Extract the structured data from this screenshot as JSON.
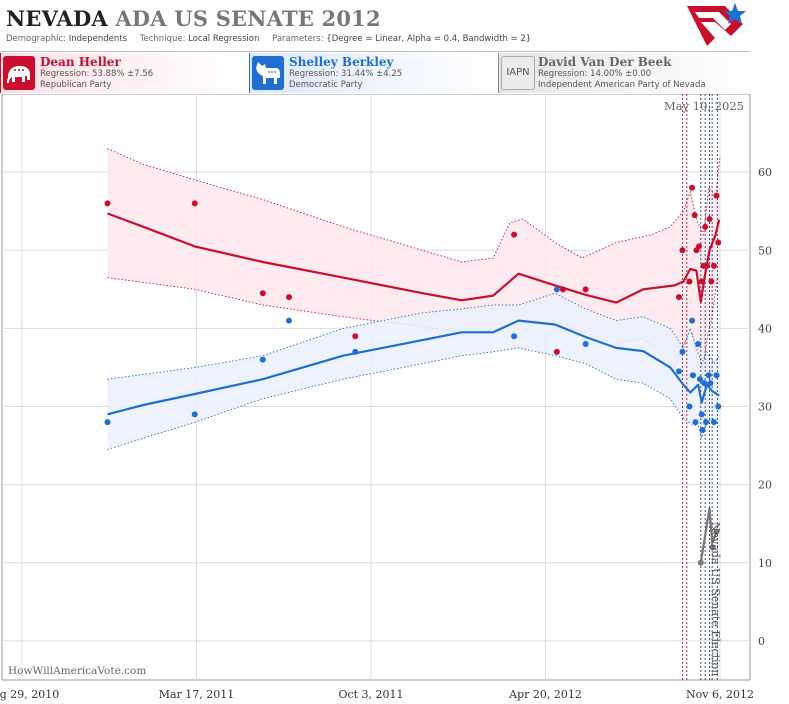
{
  "header": {
    "title_state": "NEVADA",
    "title_race": "ADA US SENATE 2012",
    "demographic_label": "Demographic:",
    "demographic_value": "Independents",
    "technique_label": "Technique:",
    "technique_value": "Local Regression",
    "parameters_label": "Parameters:",
    "parameters_value": "{Degree = Linear, Alpha = 0.4, Bandwidth = 2}"
  },
  "candidates": [
    {
      "name": "Dean Heller",
      "regression": "Regression: 53.88% ±7.56",
      "party": "Republican Party",
      "color": "#c8102e",
      "icon": "elephant-icon"
    },
    {
      "name": "Shelley Berkley",
      "regression": "Regression: 31.44% ±4.25",
      "party": "Democratic Party",
      "color": "#1f6fd1",
      "icon": "donkey-icon"
    },
    {
      "name": "David Van Der Beek",
      "regression": "Regression: 14.00% ±0.00",
      "party": "Independent American Party  of Nevada",
      "color": "#888888",
      "icon": "IAPN"
    }
  ],
  "chart_data": {
    "type": "scatter",
    "date_label": "May 10, 2025",
    "election_label": "Nevada US Senate Election",
    "watermark": "HowWillAmericaVote.com",
    "x_ticks": [
      "Aug 29, 2010",
      "Mar 17, 2011",
      "Oct 3, 2011",
      "Apr 20, 2012",
      "Nov 6, 2012"
    ],
    "xlim": [
      "2010-08-29",
      "2012-11-06"
    ],
    "ylim": [
      -5,
      70
    ],
    "y_ticks": [
      0,
      10,
      20,
      30,
      40,
      50,
      60
    ],
    "grid": true,
    "vlines_red": [
      "2012-09-24",
      "2012-09-29"
    ],
    "vlines_dark": [
      "2012-10-15",
      "2012-10-20",
      "2012-10-25",
      "2012-10-28",
      "2012-11-03"
    ],
    "series": [
      {
        "name": "Dean Heller",
        "color": "#c8102e",
        "band_fill": "#fde7ec",
        "points": [
          [
            "2010-12-05",
            56
          ],
          [
            "2011-03-15",
            56
          ],
          [
            "2011-06-01",
            44.5
          ],
          [
            "2011-07-01",
            44
          ],
          [
            "2011-09-15",
            39
          ],
          [
            "2012-03-15",
            52
          ],
          [
            "2012-05-03",
            37
          ],
          [
            "2012-05-10",
            45
          ],
          [
            "2012-06-05",
            45
          ],
          [
            "2012-09-20",
            44
          ],
          [
            "2012-09-24",
            50
          ],
          [
            "2012-10-02",
            46
          ],
          [
            "2012-10-05",
            58
          ],
          [
            "2012-10-08",
            54.5
          ],
          [
            "2012-10-10",
            50
          ],
          [
            "2012-10-13",
            50.5
          ],
          [
            "2012-10-16",
            46
          ],
          [
            "2012-10-18",
            48
          ],
          [
            "2012-10-20",
            53
          ],
          [
            "2012-10-22",
            48
          ],
          [
            "2012-10-25",
            54
          ],
          [
            "2012-10-27",
            46
          ],
          [
            "2012-10-30",
            48
          ],
          [
            "2012-11-02",
            57
          ],
          [
            "2012-11-04",
            51
          ]
        ],
        "trend": [
          [
            "2010-12-05",
            54.7
          ],
          [
            "2011-01-15",
            53
          ],
          [
            "2011-03-15",
            50.5
          ],
          [
            "2011-06-01",
            48.5
          ],
          [
            "2011-09-01",
            46.5
          ],
          [
            "2011-12-01",
            44.5
          ],
          [
            "2012-01-15",
            43.6
          ],
          [
            "2012-02-20",
            44.2
          ],
          [
            "2012-03-20",
            47
          ],
          [
            "2012-05-01",
            45.5
          ],
          [
            "2012-06-05",
            44.3
          ],
          [
            "2012-07-10",
            43.3
          ],
          [
            "2012-08-10",
            45
          ],
          [
            "2012-09-15",
            45.5
          ],
          [
            "2012-09-25",
            46
          ],
          [
            "2012-10-03",
            47.6
          ],
          [
            "2012-10-10",
            47.4
          ],
          [
            "2012-10-15",
            43.4
          ],
          [
            "2012-10-20",
            47
          ],
          [
            "2012-10-25",
            50
          ],
          [
            "2012-11-01",
            52
          ],
          [
            "2012-11-05",
            53.9
          ]
        ],
        "upper": [
          [
            "2010-12-05",
            63
          ],
          [
            "2011-01-15",
            61
          ],
          [
            "2011-03-15",
            59
          ],
          [
            "2011-06-01",
            56.5
          ],
          [
            "2011-09-01",
            53
          ],
          [
            "2011-12-01",
            50
          ],
          [
            "2012-01-15",
            48.5
          ],
          [
            "2012-02-20",
            49
          ],
          [
            "2012-03-10",
            53.5
          ],
          [
            "2012-03-25",
            54
          ],
          [
            "2012-05-01",
            51
          ],
          [
            "2012-06-01",
            49
          ],
          [
            "2012-07-10",
            51
          ],
          [
            "2012-08-20",
            52
          ],
          [
            "2012-09-10",
            53
          ],
          [
            "2012-09-25",
            55
          ],
          [
            "2012-10-03",
            57.5
          ],
          [
            "2012-10-10",
            54
          ],
          [
            "2012-10-18",
            52
          ],
          [
            "2012-10-24",
            58
          ],
          [
            "2012-11-01",
            57
          ],
          [
            "2012-11-06",
            62
          ]
        ],
        "lower": [
          [
            "2010-12-05",
            46.5
          ],
          [
            "2011-03-15",
            45
          ],
          [
            "2011-06-01",
            43
          ],
          [
            "2011-09-01",
            41.5
          ],
          [
            "2011-12-01",
            40.2
          ],
          [
            "2012-01-15",
            39.5
          ],
          [
            "2012-02-20",
            39.8
          ],
          [
            "2012-03-20",
            41
          ],
          [
            "2012-05-01",
            40.3
          ],
          [
            "2012-06-05",
            39.5
          ],
          [
            "2012-07-10",
            38
          ],
          [
            "2012-08-10",
            38.8
          ],
          [
            "2012-09-15",
            35
          ],
          [
            "2012-09-25",
            38
          ],
          [
            "2012-10-05",
            39.5
          ],
          [
            "2012-10-15",
            33
          ],
          [
            "2012-10-22",
            38.5
          ],
          [
            "2012-10-28",
            41.5
          ],
          [
            "2012-11-03",
            46.5
          ],
          [
            "2012-11-05",
            46
          ]
        ]
      },
      {
        "name": "Shelley Berkley",
        "color": "#1f6fd1",
        "band_fill": "#eaf0fb",
        "points": [
          [
            "2010-12-05",
            28
          ],
          [
            "2011-03-15",
            29
          ],
          [
            "2011-06-01",
            36
          ],
          [
            "2011-07-01",
            41
          ],
          [
            "2011-09-15",
            37
          ],
          [
            "2012-03-15",
            39
          ],
          [
            "2012-05-03",
            45
          ],
          [
            "2012-06-05",
            38
          ],
          [
            "2012-09-20",
            34.5
          ],
          [
            "2012-09-24",
            37
          ],
          [
            "2012-10-02",
            30
          ],
          [
            "2012-10-05",
            41
          ],
          [
            "2012-10-06",
            34
          ],
          [
            "2012-10-09",
            28
          ],
          [
            "2012-10-12",
            38
          ],
          [
            "2012-10-14",
            33.5
          ],
          [
            "2012-10-16",
            29
          ],
          [
            "2012-10-17",
            27
          ],
          [
            "2012-10-19",
            33
          ],
          [
            "2012-10-21",
            28
          ],
          [
            "2012-10-24",
            34
          ],
          [
            "2012-10-26",
            33
          ],
          [
            "2012-10-30",
            28
          ],
          [
            "2012-11-02",
            34
          ],
          [
            "2012-11-04",
            30
          ]
        ],
        "trend": [
          [
            "2010-12-05",
            29
          ],
          [
            "2011-01-15",
            30.2
          ],
          [
            "2011-03-15",
            31.6
          ],
          [
            "2011-06-01",
            33.5
          ],
          [
            "2011-09-01",
            36.5
          ],
          [
            "2011-12-01",
            38.5
          ],
          [
            "2012-01-15",
            39.5
          ],
          [
            "2012-02-20",
            39.5
          ],
          [
            "2012-03-20",
            41
          ],
          [
            "2012-05-01",
            40.5
          ],
          [
            "2012-06-05",
            38.9
          ],
          [
            "2012-07-10",
            37.5
          ],
          [
            "2012-08-10",
            37.1
          ],
          [
            "2012-09-10",
            35
          ],
          [
            "2012-09-25",
            32.8
          ],
          [
            "2012-10-03",
            31.8
          ],
          [
            "2012-10-12",
            32.8
          ],
          [
            "2012-10-16",
            30.5
          ],
          [
            "2012-10-22",
            32.8
          ],
          [
            "2012-10-28",
            32
          ],
          [
            "2012-11-05",
            31.4
          ]
        ],
        "upper": [
          [
            "2010-12-05",
            33.5
          ],
          [
            "2011-03-15",
            35
          ],
          [
            "2011-06-01",
            36.5
          ],
          [
            "2011-09-01",
            40
          ],
          [
            "2011-12-01",
            42
          ],
          [
            "2012-01-15",
            42.5
          ],
          [
            "2012-02-20",
            43
          ],
          [
            "2012-03-20",
            43
          ],
          [
            "2012-05-01",
            44.5
          ],
          [
            "2012-06-05",
            42.5
          ],
          [
            "2012-07-10",
            41
          ],
          [
            "2012-08-10",
            41.5
          ],
          [
            "2012-09-10",
            40
          ],
          [
            "2012-09-25",
            37.5
          ],
          [
            "2012-10-03",
            40
          ],
          [
            "2012-10-10",
            37.5
          ],
          [
            "2012-10-16",
            35.5
          ],
          [
            "2012-10-22",
            37
          ],
          [
            "2012-10-30",
            35.5
          ],
          [
            "2012-11-05",
            36.5
          ]
        ],
        "lower": [
          [
            "2010-12-05",
            24.5
          ],
          [
            "2011-03-15",
            28
          ],
          [
            "2011-06-01",
            31
          ],
          [
            "2011-09-01",
            33.5
          ],
          [
            "2011-12-01",
            35.5
          ],
          [
            "2012-01-15",
            36.5
          ],
          [
            "2012-02-20",
            37
          ],
          [
            "2012-03-20",
            37.5
          ],
          [
            "2012-05-01",
            36.5
          ],
          [
            "2012-06-05",
            35.5
          ],
          [
            "2012-07-10",
            33.5
          ],
          [
            "2012-08-10",
            33
          ],
          [
            "2012-09-10",
            31
          ],
          [
            "2012-09-25",
            28.5
          ],
          [
            "2012-10-03",
            27.8
          ],
          [
            "2012-10-12",
            27.5
          ],
          [
            "2012-10-16",
            26
          ],
          [
            "2012-10-22",
            28
          ],
          [
            "2012-10-30",
            28.5
          ],
          [
            "2012-11-05",
            27.5
          ]
        ]
      },
      {
        "name": "David Van Der Beek",
        "color": "#777777",
        "points": [
          [
            "2012-10-15",
            10
          ],
          [
            "2012-10-28",
            12
          ],
          [
            "2012-11-02",
            14
          ]
        ],
        "trend": [
          [
            "2012-10-15",
            10
          ],
          [
            "2012-10-25",
            17
          ],
          [
            "2012-10-28",
            12.5
          ],
          [
            "2012-11-02",
            14
          ]
        ]
      }
    ]
  }
}
